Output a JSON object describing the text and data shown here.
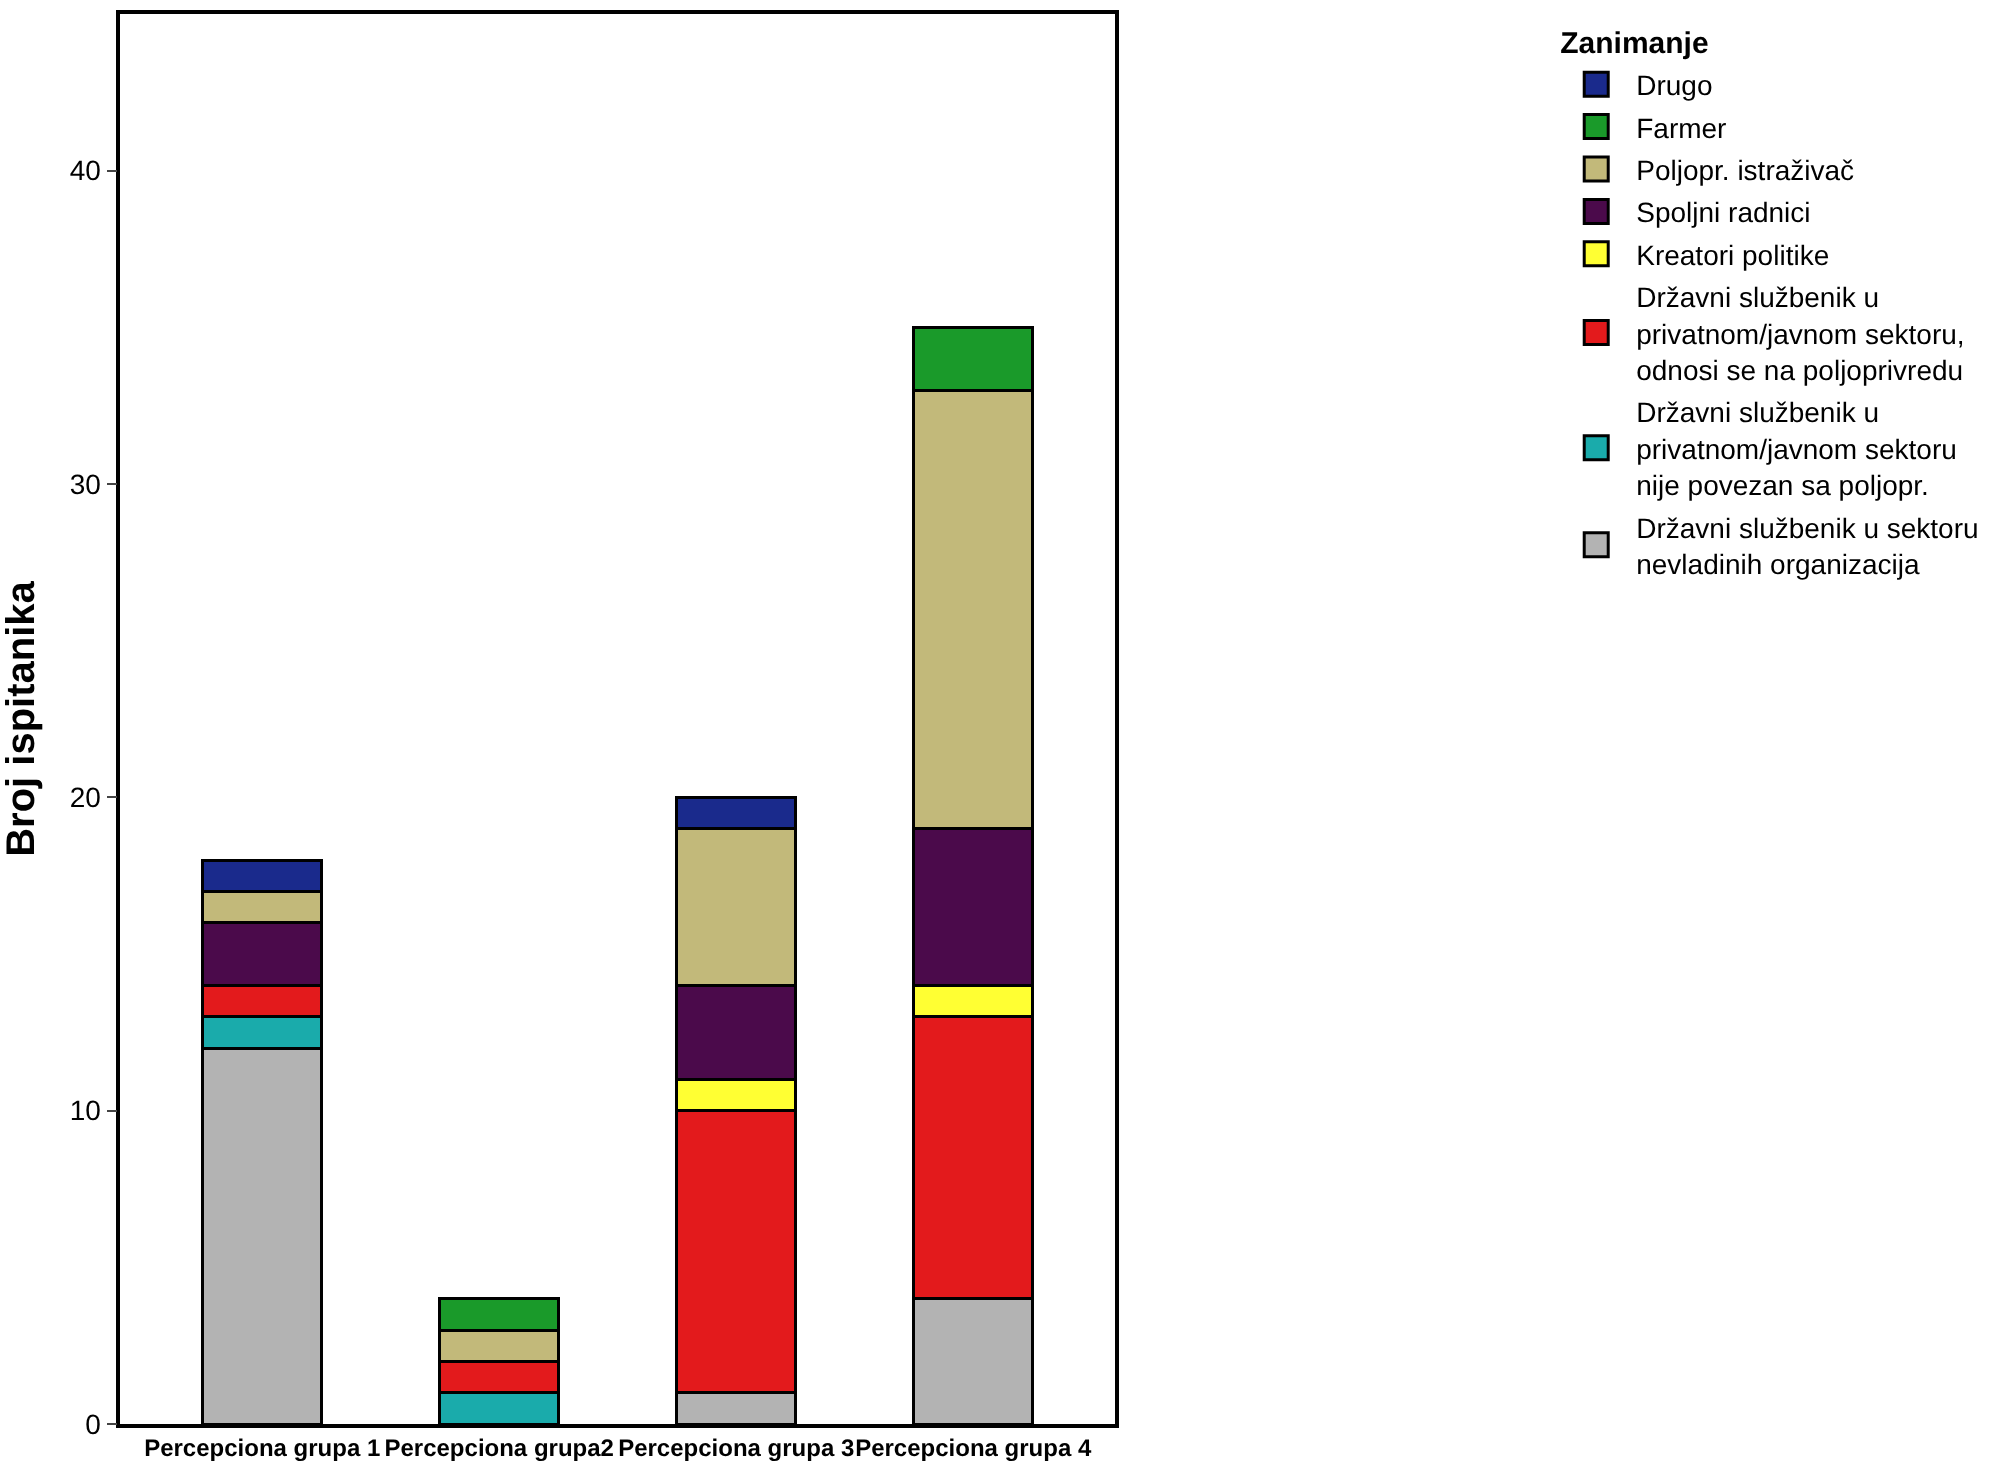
{
  "chart_data": {
    "type": "bar",
    "stacked": true,
    "ylabel": "Broj ispitanika",
    "legend_title": "Zanimanje",
    "legend": "right",
    "categories": [
      "Percepciona grupa 1",
      "Percepciona grupa2",
      "Percepciona grupa 3",
      "Percepciona grupa 4"
    ],
    "ylim": [
      0,
      45
    ],
    "yticks": [
      0,
      10,
      20,
      30,
      40
    ],
    "series": [
      {
        "name": "Državni službenik u sektoru nevladinih organizacija",
        "color": "#b3b3b3",
        "values": [
          12,
          null,
          1,
          4
        ]
      },
      {
        "name": "Državni službenik u privatnom/javnom sektoru nije povezan sa poljopr.",
        "color": "#1aabab",
        "values": [
          1,
          1,
          null,
          null
        ]
      },
      {
        "name": "Državni službenik u privatnom/javnom sektoru, odnosi se na poljoprivredu",
        "color": "#e31a1c",
        "values": [
          1,
          1,
          9,
          9
        ]
      },
      {
        "name": "Kreatori politike",
        "color": "#ffff33",
        "values": [
          null,
          null,
          1,
          1
        ]
      },
      {
        "name": "Spoljni radnici",
        "color": "#4b0a4b",
        "values": [
          2,
          null,
          3,
          5
        ]
      },
      {
        "name": "Poljopr. istraživač",
        "color": "#c2b97a",
        "values": [
          1,
          1,
          5,
          14
        ]
      },
      {
        "name": "Farmer",
        "color": "#1a9a2a",
        "values": [
          null,
          1,
          null,
          2
        ]
      },
      {
        "name": "Drugo",
        "color": "#1a2a8c",
        "values": [
          1,
          null,
          1,
          null
        ]
      }
    ]
  }
}
